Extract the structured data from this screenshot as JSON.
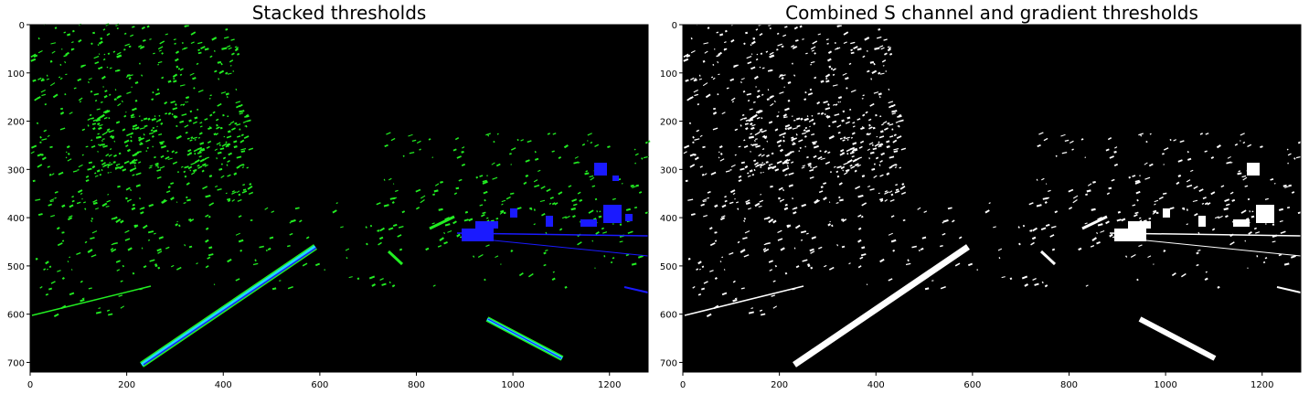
{
  "figure": {
    "panels": [
      {
        "title": "Stacked thresholds"
      },
      {
        "title": "Combined S channel and gradient thresholds"
      }
    ],
    "x_ticks": [
      "0",
      "200",
      "400",
      "600",
      "800",
      "1000",
      "1200"
    ],
    "y_ticks": [
      "0",
      "100",
      "200",
      "300",
      "400",
      "500",
      "600",
      "700"
    ],
    "colors": {
      "background": "#000000",
      "stacked_green": "#22ee22",
      "stacked_blue": "#1a1aff",
      "stacked_cyan": "#20d8ff",
      "binary_white": "#ffffff"
    }
  }
}
